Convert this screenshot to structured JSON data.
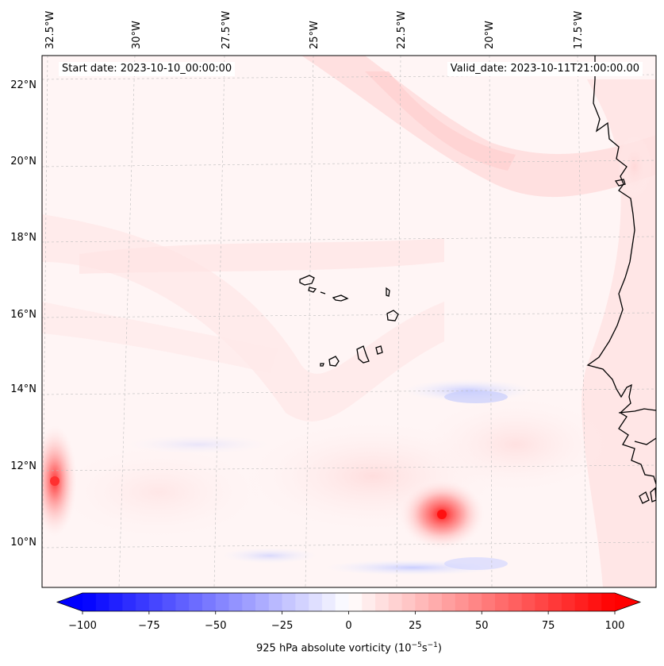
{
  "header": {
    "start_date": "Start date: 2023-10-10_00:00:00",
    "valid_date": "Valid_date: 2023-10-11T21:00:00.00"
  },
  "map": {
    "longitude_labels": [
      "32.5°W",
      "30°W",
      "27.5°W",
      "25°W",
      "22.5°W",
      "20°W",
      "17.5°W"
    ],
    "latitude_labels": [
      "22°N",
      "20°N",
      "18°N",
      "16°N",
      "14°N",
      "12°N",
      "10°N"
    ],
    "field": "925 hPa absolute vorticity",
    "features": [
      {
        "name": "vorticity maximum near 21.5°W 10.8°N",
        "value": 75
      },
      {
        "name": "vorticity maximum near 32.5°W 11.6°N",
        "value": 60
      },
      {
        "name": "positive band along African coast",
        "value": 15
      },
      {
        "name": "negative band near 22°W 13.9°N",
        "value": -20
      }
    ]
  },
  "colorbar": {
    "ticks": [
      "−100",
      "−75",
      "−50",
      "−25",
      "0",
      "25",
      "50",
      "75",
      "100"
    ],
    "min": -100,
    "max": 100,
    "levels": 40,
    "negative_color": "#0000ff",
    "positive_color": "#ff0000",
    "label_text": "925 hPa absolute vorticity (10",
    "label_exp1": "−5",
    "label_mid": "s",
    "label_exp2": "−1",
    "label_close": ")"
  }
}
